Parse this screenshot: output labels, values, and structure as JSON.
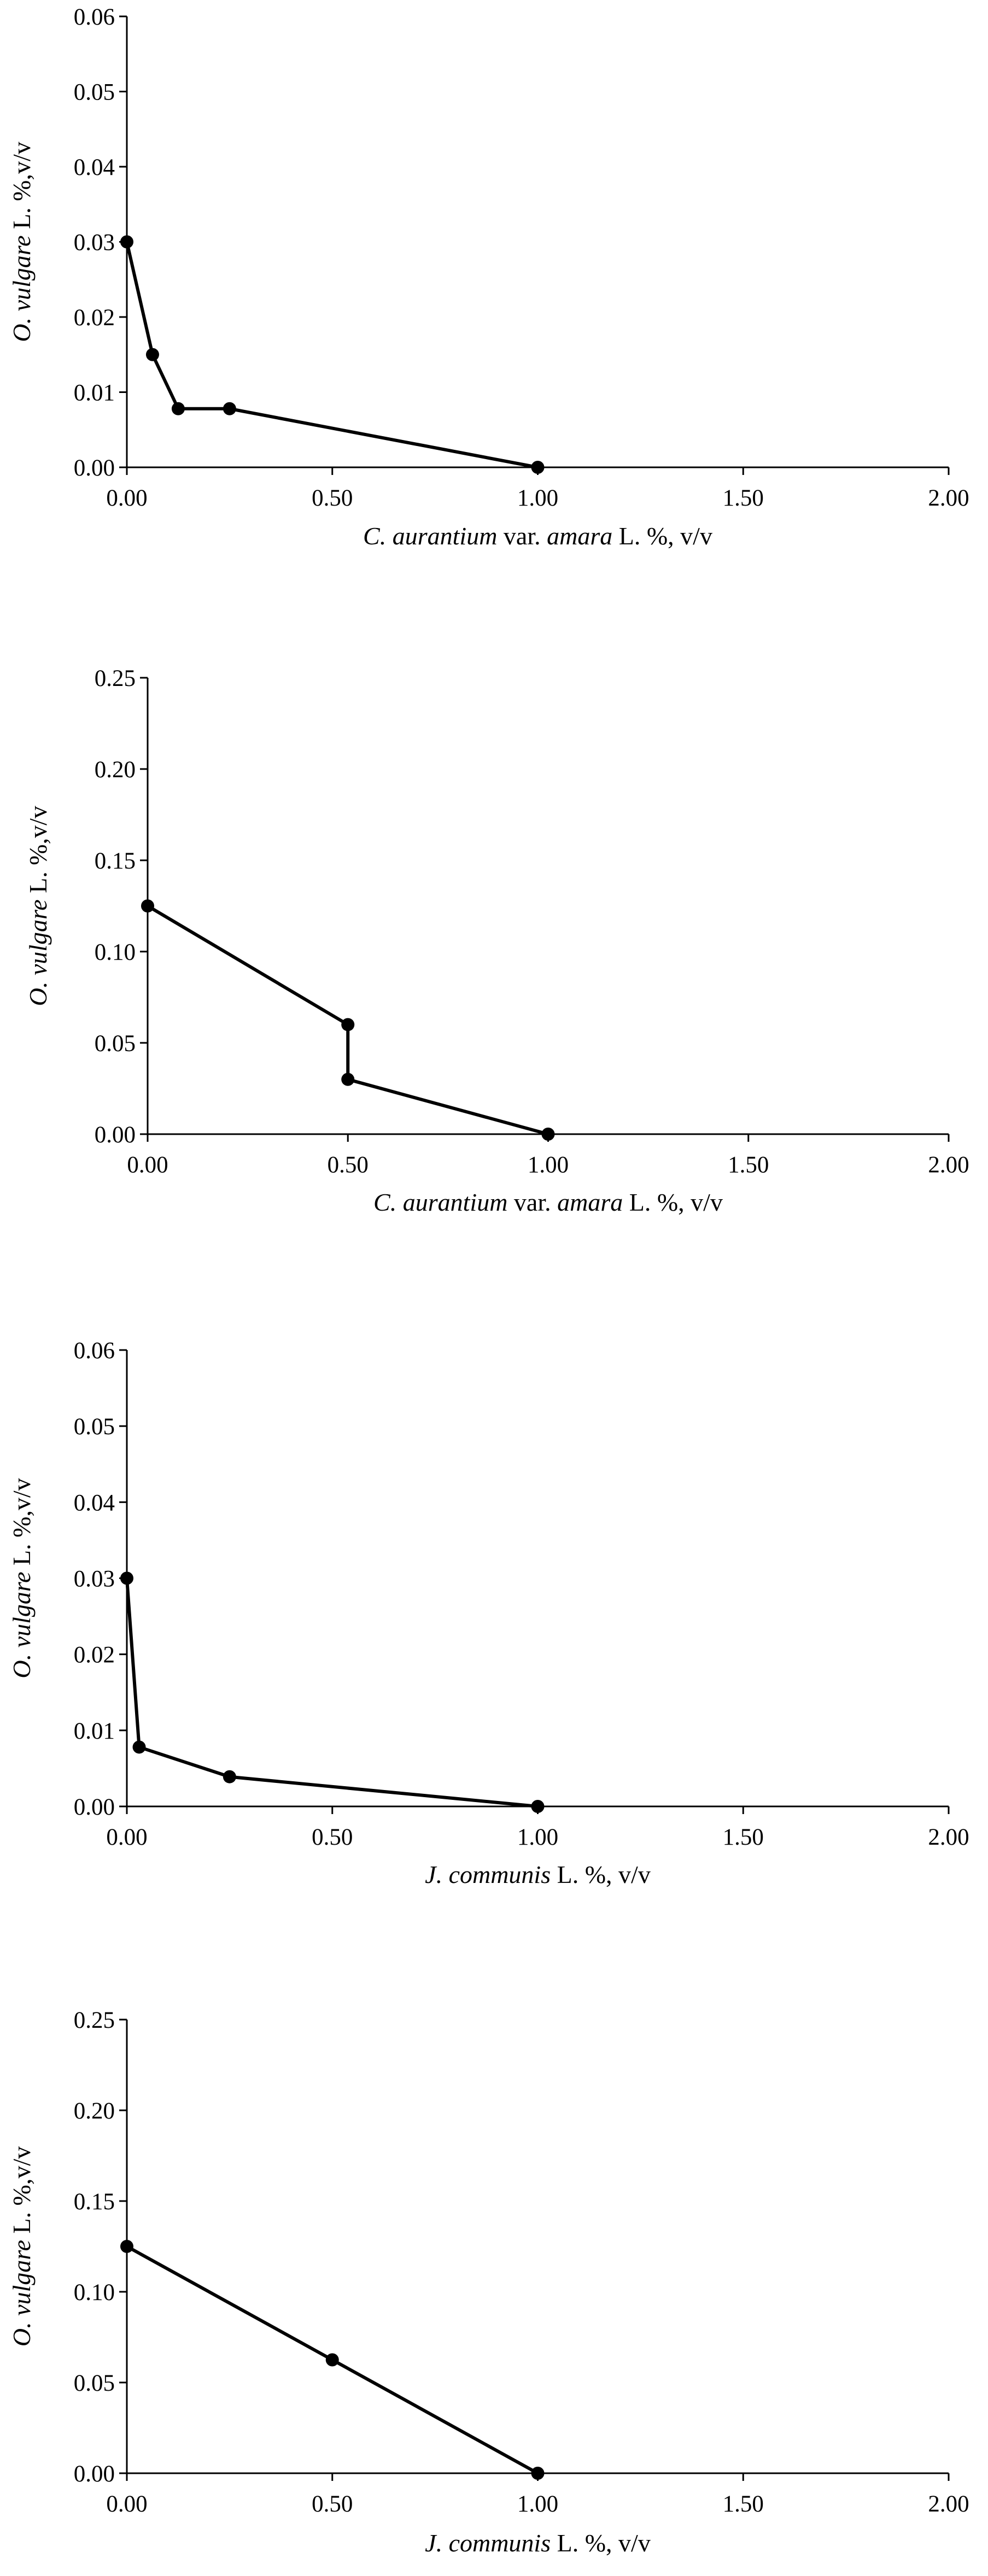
{
  "chart_data": [
    {
      "type": "line",
      "x": [
        0,
        0.0625,
        0.125,
        0.25,
        1
      ],
      "series": [
        {
          "values": [
            0.03,
            0.015,
            0.0078,
            0.0078,
            0
          ]
        }
      ],
      "xlim": [
        0,
        2
      ],
      "ylim": [
        0,
        0.06
      ],
      "x_ticks": [
        "0.00",
        "0.50",
        "1.00",
        "1.50",
        "2.00"
      ],
      "y_ticks": [
        "0.00",
        "0.01",
        "0.02",
        "0.03",
        "0.04",
        "0.05",
        "0.06"
      ],
      "xlabel": [
        {
          "text": "C. aurantium",
          "italic": true
        },
        {
          "text": " var. ",
          "italic": false
        },
        {
          "text": "amara",
          "italic": true
        },
        {
          "text": " L. %, v/v",
          "italic": false
        }
      ],
      "ylabel": [
        {
          "text": "O. vulgare",
          "italic": true
        },
        {
          "text": " L. ",
          "italic": false
        },
        {
          "text": "%,v/v",
          "italic": false
        }
      ],
      "grid": false,
      "line_color": "#000000",
      "marker": "filled-circle"
    },
    {
      "type": "line",
      "x": [
        0,
        0.5,
        0.5,
        1
      ],
      "series": [
        {
          "values": [
            0.125,
            0.06,
            0.03,
            0
          ]
        }
      ],
      "xlim": [
        0,
        2
      ],
      "ylim": [
        0,
        0.25
      ],
      "x_ticks": [
        "0.00",
        "0.50",
        "1.00",
        "1.50",
        "2.00"
      ],
      "y_ticks": [
        "0.00",
        "0.05",
        "0.10",
        "0.15",
        "0.20",
        "0.25"
      ],
      "xlabel": [
        {
          "text": "C. aurantium",
          "italic": true
        },
        {
          "text": " var. ",
          "italic": false
        },
        {
          "text": "amara",
          "italic": true
        },
        {
          "text": " L. %, v/v",
          "italic": false
        }
      ],
      "ylabel": [
        {
          "text": "O. vulgare",
          "italic": true
        },
        {
          "text": " L. ",
          "italic": false
        },
        {
          "text": "%,v/v",
          "italic": false
        }
      ],
      "grid": false,
      "line_color": "#000000",
      "marker": "filled-circle"
    },
    {
      "type": "line",
      "x": [
        0,
        0.03,
        0.25,
        1
      ],
      "series": [
        {
          "values": [
            0.03,
            0.0078,
            0.0039,
            0
          ]
        }
      ],
      "xlim": [
        0,
        2
      ],
      "ylim": [
        0,
        0.06
      ],
      "x_ticks": [
        "0.00",
        "0.50",
        "1.00",
        "1.50",
        "2.00"
      ],
      "y_ticks": [
        "0.00",
        "0.01",
        "0.02",
        "0.03",
        "0.04",
        "0.05",
        "0.06"
      ],
      "xlabel": [
        {
          "text": "J. communis",
          "italic": true
        },
        {
          "text": " L. %, v/v",
          "italic": false
        }
      ],
      "ylabel": [
        {
          "text": "O. vulgare",
          "italic": true
        },
        {
          "text": " L. ",
          "italic": false
        },
        {
          "text": "%,v/v",
          "italic": false
        }
      ],
      "grid": false,
      "line_color": "#000000",
      "marker": "filled-circle"
    },
    {
      "type": "line",
      "x": [
        0,
        0.5,
        1
      ],
      "series": [
        {
          "values": [
            0.125,
            0.0625,
            0
          ]
        }
      ],
      "xlim": [
        0,
        2
      ],
      "ylim": [
        0,
        0.25
      ],
      "x_ticks": [
        "0.00",
        "0.50",
        "1.00",
        "1.50",
        "2.00"
      ],
      "y_ticks": [
        "0.00",
        "0.05",
        "0.10",
        "0.15",
        "0.20",
        "0.25"
      ],
      "xlabel": [
        {
          "text": "J. communis",
          "italic": true
        },
        {
          "text": " L. %, v/v",
          "italic": false
        }
      ],
      "ylabel": [
        {
          "text": "O. vulgare",
          "italic": true
        },
        {
          "text": " L. ",
          "italic": false
        },
        {
          "text": "%,v/v",
          "italic": false
        }
      ],
      "grid": false,
      "line_color": "#000000",
      "marker": "filled-circle"
    }
  ]
}
